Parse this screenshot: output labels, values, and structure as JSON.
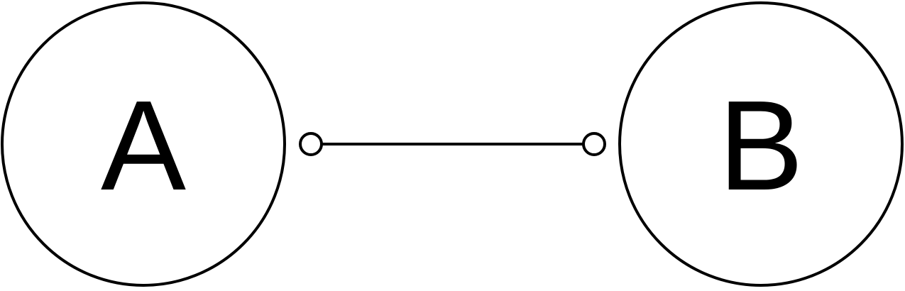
{
  "diagram": {
    "nodes": [
      {
        "id": "A",
        "label": "A"
      },
      {
        "id": "B",
        "label": "B"
      }
    ],
    "edges": [
      {
        "from": "A",
        "to": "B",
        "endpoint_style": "open-circle"
      }
    ],
    "colors": {
      "stroke": "#000000",
      "fill": "#ffffff"
    }
  }
}
